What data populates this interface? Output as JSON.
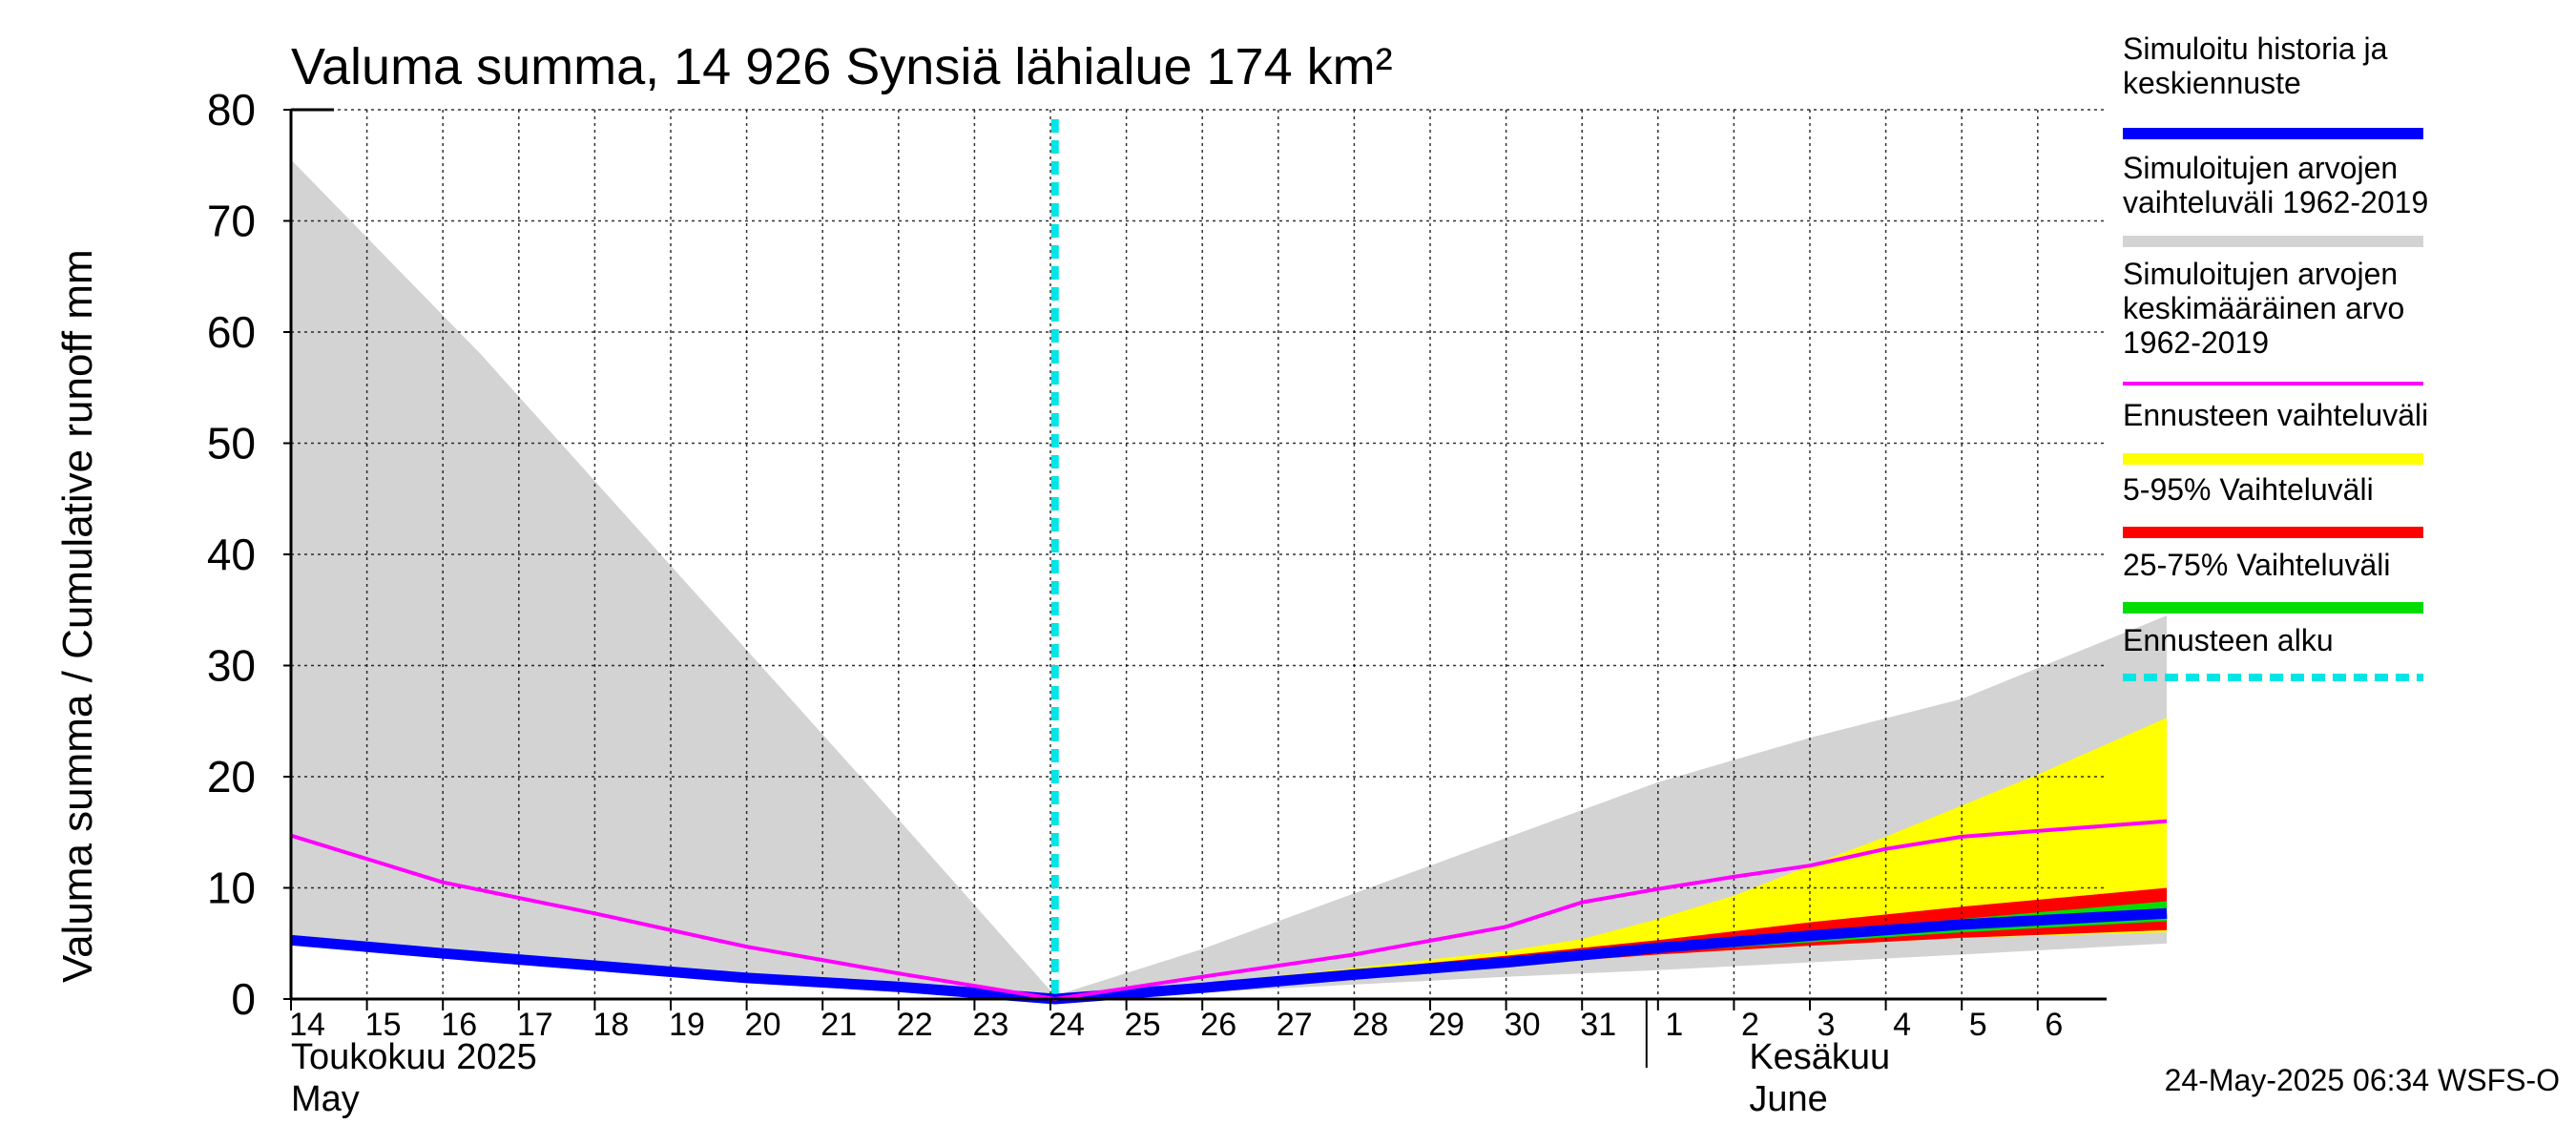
{
  "chart_data": {
    "type": "area",
    "title": "Valuma summa, 14 926 Synsiä lähialue 174 km²",
    "ylabel": "Valuma summa / Cumulative runoff    mm",
    "ylim": [
      0,
      80
    ],
    "yticks": [
      0,
      10,
      20,
      30,
      40,
      50,
      60,
      70,
      80
    ],
    "x_range_days": [
      0,
      24.7
    ],
    "x_ticks": [
      {
        "day": 0,
        "label": "14"
      },
      {
        "day": 1,
        "label": "15"
      },
      {
        "day": 2,
        "label": "16"
      },
      {
        "day": 3,
        "label": "17"
      },
      {
        "day": 4,
        "label": "18"
      },
      {
        "day": 5,
        "label": "19"
      },
      {
        "day": 6,
        "label": "20"
      },
      {
        "day": 7,
        "label": "21"
      },
      {
        "day": 8,
        "label": "22"
      },
      {
        "day": 9,
        "label": "23"
      },
      {
        "day": 10,
        "label": "24"
      },
      {
        "day": 11,
        "label": "25"
      },
      {
        "day": 12,
        "label": "26"
      },
      {
        "day": 13,
        "label": "27"
      },
      {
        "day": 14,
        "label": "28"
      },
      {
        "day": 15,
        "label": "29"
      },
      {
        "day": 16,
        "label": "30"
      },
      {
        "day": 17,
        "label": "31"
      },
      {
        "day": 18,
        "label": "1"
      },
      {
        "day": 19,
        "label": "2"
      },
      {
        "day": 20,
        "label": "3"
      },
      {
        "day": 21,
        "label": "4"
      },
      {
        "day": 22,
        "label": "5"
      },
      {
        "day": 23,
        "label": "6"
      }
    ],
    "month_labels": [
      {
        "day": 0,
        "line1": "Toukokuu  2025",
        "line2": "May"
      },
      {
        "day": 19.2,
        "line1": "Kesäkuu",
        "line2": "June"
      }
    ],
    "month_separator_day": 18,
    "forecast_start_day": 10.06,
    "grid": true,
    "legend_position": "right",
    "series": [
      {
        "name": "Simuloitujen arvojen vaihteluväli 1962-2019",
        "kind": "band",
        "color": "#d3d3d3",
        "upper": [
          [
            0,
            75.5
          ],
          [
            2.5,
            58
          ],
          [
            5,
            39
          ],
          [
            7.5,
            20
          ],
          [
            10.06,
            0.3
          ],
          [
            12,
            4.5
          ],
          [
            14,
            9.5
          ],
          [
            16,
            14.5
          ],
          [
            18,
            19.5
          ],
          [
            20,
            23.5
          ],
          [
            22,
            27
          ],
          [
            24.7,
            34.5
          ]
        ],
        "lower": [
          [
            0,
            4.8
          ],
          [
            5,
            2.2
          ],
          [
            10.06,
            0
          ],
          [
            12,
            0.6
          ],
          [
            14,
            1.3
          ],
          [
            16,
            2
          ],
          [
            18,
            2.6
          ],
          [
            20,
            3.3
          ],
          [
            22,
            4
          ],
          [
            24.7,
            5
          ]
        ]
      },
      {
        "name": "Ennusteen vaihteluväli",
        "kind": "band",
        "color": "#ffff00",
        "upper": [
          [
            10.06,
            0
          ],
          [
            12,
            1.4
          ],
          [
            14,
            2.8
          ],
          [
            16,
            4.3
          ],
          [
            17,
            5.4
          ],
          [
            18,
            7.2
          ],
          [
            19,
            9.3
          ],
          [
            20,
            12
          ],
          [
            21,
            14.6
          ],
          [
            22,
            17.4
          ],
          [
            23,
            20.2
          ],
          [
            24.7,
            25.3
          ]
        ],
        "lower": [
          [
            10.06,
            0
          ],
          [
            12,
            1
          ],
          [
            14,
            2
          ],
          [
            16,
            3
          ],
          [
            18,
            4
          ],
          [
            20,
            4.8
          ],
          [
            22,
            5.5
          ],
          [
            24.7,
            6
          ]
        ]
      },
      {
        "name": "5-95% Vaihteluväli",
        "kind": "band",
        "color": "#ff0000",
        "upper": [
          [
            10.06,
            0
          ],
          [
            12,
            1.3
          ],
          [
            14,
            2.6
          ],
          [
            16,
            3.9
          ],
          [
            18,
            5.3
          ],
          [
            20,
            6.9
          ],
          [
            22,
            8.3
          ],
          [
            24.7,
            10
          ]
        ],
        "lower": [
          [
            10.06,
            0
          ],
          [
            12,
            1
          ],
          [
            14,
            2
          ],
          [
            16,
            3
          ],
          [
            18,
            4
          ],
          [
            20,
            4.8
          ],
          [
            22,
            5.5
          ],
          [
            24.7,
            6.2
          ]
        ]
      },
      {
        "name": "25-75% Vaihteluväli",
        "kind": "band",
        "color": "#00dd00",
        "upper": [
          [
            10.06,
            0
          ],
          [
            12,
            1.2
          ],
          [
            14,
            2.4
          ],
          [
            16,
            3.6
          ],
          [
            18,
            4.8
          ],
          [
            20,
            6
          ],
          [
            22,
            7.2
          ],
          [
            24.7,
            8.8
          ]
        ],
        "lower": [
          [
            10.06,
            0
          ],
          [
            12,
            1.05
          ],
          [
            14,
            2.1
          ],
          [
            16,
            3.1
          ],
          [
            18,
            4.2
          ],
          [
            20,
            5.1
          ],
          [
            22,
            6
          ],
          [
            24.7,
            7
          ]
        ]
      },
      {
        "name": "Simuloitu historia ja keskiennuste",
        "kind": "line",
        "color": "#0000ff",
        "width": 11,
        "points": [
          [
            0,
            5.3
          ],
          [
            2,
            4.1
          ],
          [
            4,
            3
          ],
          [
            6,
            1.9
          ],
          [
            8,
            1.1
          ],
          [
            10.06,
            0
          ],
          [
            12,
            1
          ],
          [
            14,
            2.2
          ],
          [
            16,
            3.3
          ],
          [
            18,
            4.6
          ],
          [
            20,
            5.7
          ],
          [
            22,
            6.7
          ],
          [
            24.7,
            7.7
          ]
        ]
      },
      {
        "name": "Simuloitujen arvojen keskimääräinen arvo 1962-2019",
        "kind": "line",
        "color": "#ff00ff",
        "width": 4,
        "points": [
          [
            0,
            14.7
          ],
          [
            2,
            10.5
          ],
          [
            4,
            7.7
          ],
          [
            6,
            4.7
          ],
          [
            8,
            2.3
          ],
          [
            10.06,
            0
          ],
          [
            12,
            2
          ],
          [
            14,
            4
          ],
          [
            16,
            6.5
          ],
          [
            17,
            8.7
          ],
          [
            18,
            9.9
          ],
          [
            19,
            11
          ],
          [
            20,
            12
          ],
          [
            21,
            13.5
          ],
          [
            22,
            14.6
          ],
          [
            24.7,
            16
          ]
        ]
      }
    ]
  },
  "legend": {
    "items": [
      {
        "text": "Simuloitu historia ja\nkeskiennuste",
        "color": "#0000ff",
        "style": "solid"
      },
      {
        "text": "Simuloitujen arvojen\nvaihteluväli 1962-2019",
        "color": "#d3d3d3",
        "style": "solid"
      },
      {
        "text": "Simuloitujen arvojen\nkeskimääräinen arvo\n   1962-2019",
        "color": "#ff00ff",
        "style": "thin"
      },
      {
        "text": "Ennusteen vaihteluväli",
        "color": "#ffff00",
        "style": "solid"
      },
      {
        "text": "5-95% Vaihteluväli",
        "color": "#ff0000",
        "style": "solid"
      },
      {
        "text": "25-75% Vaihteluväli",
        "color": "#00dd00",
        "style": "solid"
      },
      {
        "text": "Ennusteen alku",
        "color": "#00e5e5",
        "style": "dashed"
      }
    ]
  },
  "footer": "24-May-2025 06:34 WSFS-O"
}
